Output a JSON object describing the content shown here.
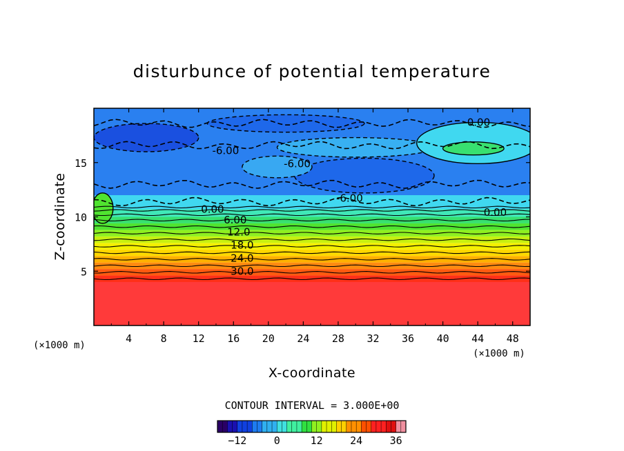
{
  "chart_data": {
    "type": "heatmap",
    "subtype": "filled-contour",
    "title": "disturbunce of potential temperature",
    "xlabel": "X-coordinate",
    "ylabel": "Z-coordinate",
    "x_unit": "(×1000 m)",
    "z_unit": "(×1000 m)",
    "xlim": [
      0,
      50
    ],
    "zlim": [
      0,
      20
    ],
    "x_ticks": [
      "4",
      "8",
      "12",
      "16",
      "20",
      "24",
      "28",
      "32",
      "36",
      "40",
      "44",
      "48"
    ],
    "z_ticks": [
      "5",
      "10",
      "15"
    ],
    "contour_interval_text": "CONTOUR INTERVAL = 3.000E+00",
    "colorbar": {
      "min": -18,
      "max": 39,
      "tick_labels": [
        "-12",
        "0",
        "12",
        "24",
        "36"
      ],
      "colors": [
        "#2a0066",
        "#1a10b0",
        "#1040e0",
        "#1e7cf0",
        "#30b0f0",
        "#40e0e0",
        "#40f0a0",
        "#30e040",
        "#90f020",
        "#e0f000",
        "#ffd000",
        "#ff9000",
        "#ff5000",
        "#ff2020",
        "#e01010",
        "#f090a0"
      ]
    },
    "layers": [
      {
        "z_bottom": 0.0,
        "z_top": 4.0,
        "value": 36,
        "color": "#ff3a3a"
      },
      {
        "z_bottom": 4.0,
        "z_top": 4.6,
        "value": 33,
        "color": "#ff3018"
      },
      {
        "z_bottom": 4.6,
        "z_top": 5.2,
        "value": 30,
        "color": "#ff5a10"
      },
      {
        "z_bottom": 5.2,
        "z_top": 5.8,
        "value": 27,
        "color": "#ff8a10"
      },
      {
        "z_bottom": 5.8,
        "z_top": 6.4,
        "value": 24,
        "color": "#ffb000"
      },
      {
        "z_bottom": 6.4,
        "z_top": 7.0,
        "value": 21,
        "color": "#ffd800"
      },
      {
        "z_bottom": 7.0,
        "z_top": 7.6,
        "value": 18,
        "color": "#f4f000"
      },
      {
        "z_bottom": 7.6,
        "z_top": 8.2,
        "value": 15,
        "color": "#c8f010"
      },
      {
        "z_bottom": 8.2,
        "z_top": 8.8,
        "value": 12,
        "color": "#8ef020"
      },
      {
        "z_bottom": 8.8,
        "z_top": 9.4,
        "value": 9,
        "color": "#50e430"
      },
      {
        "z_bottom": 9.4,
        "z_top": 10.0,
        "value": 6,
        "color": "#38e070"
      },
      {
        "z_bottom": 10.0,
        "z_top": 10.7,
        "value": 3,
        "color": "#40e8b8"
      },
      {
        "z_bottom": 10.7,
        "z_top": 12.0,
        "value": 0,
        "color": "#40d8f0"
      },
      {
        "z_bottom": 12.0,
        "z_top": 20.0,
        "value": -6,
        "color": "#2a80f0"
      }
    ],
    "contour_lines": [
      {
        "z": 4.3,
        "value": 36,
        "style": "solid"
      },
      {
        "z": 4.9,
        "value": 33,
        "style": "solid"
      },
      {
        "z": 5.5,
        "value": 30,
        "style": "solid"
      },
      {
        "z": 6.1,
        "value": 27,
        "style": "solid"
      },
      {
        "z": 6.7,
        "value": 24,
        "style": "solid"
      },
      {
        "z": 7.3,
        "value": 21,
        "style": "solid"
      },
      {
        "z": 7.9,
        "value": 18,
        "style": "solid"
      },
      {
        "z": 8.5,
        "value": 15,
        "style": "solid"
      },
      {
        "z": 9.1,
        "value": 12,
        "style": "solid"
      },
      {
        "z": 9.7,
        "value": 9,
        "style": "solid"
      },
      {
        "z": 10.2,
        "value": 6,
        "style": "solid"
      },
      {
        "z": 10.6,
        "value": 3,
        "style": "solid"
      },
      {
        "z": 10.9,
        "value": 0,
        "style": "solid"
      },
      {
        "z": 11.4,
        "value": -3,
        "style": "dashed"
      },
      {
        "z": 13.0,
        "value": -6,
        "style": "dashed"
      },
      {
        "z": 16.6,
        "value": -6,
        "style": "dashed"
      },
      {
        "z": 18.6,
        "value": -9,
        "style": "dashed"
      }
    ],
    "cells": [
      {
        "x": 6,
        "z": 17.3,
        "rx": 6,
        "rz": 1.3,
        "value": -12,
        "color": "#1a50e0"
      },
      {
        "x": 22,
        "z": 18.6,
        "rx": 9,
        "rz": 0.8,
        "value": -9,
        "color": "#1e68ea"
      },
      {
        "x": 31,
        "z": 13.8,
        "rx": 8,
        "rz": 1.6,
        "value": -9,
        "color": "#1e68ea"
      },
      {
        "x": 30,
        "z": 16.4,
        "rx": 9,
        "rz": 0.9,
        "value": -3,
        "color": "#38b0f2"
      },
      {
        "x": 44,
        "z": 16.8,
        "rx": 7,
        "rz": 1.9,
        "value": 0,
        "color": "#40d8f0"
      },
      {
        "x": 43.5,
        "z": 16.3,
        "rx": 3.5,
        "rz": 0.6,
        "value": 6,
        "color": "#38e070"
      },
      {
        "x": 21,
        "z": 14.6,
        "rx": 4,
        "rz": 1.0,
        "value": -3,
        "color": "#38a8f2"
      },
      {
        "x": 1,
        "z": 10.8,
        "rx": 1.2,
        "rz": 1.4,
        "value": 9,
        "color": "#50e430"
      }
    ],
    "contour_labels": [
      {
        "text": "30.0",
        "x": 17.0,
        "z": 5.0
      },
      {
        "text": "24.0",
        "x": 17.0,
        "z": 6.2
      },
      {
        "text": "18.0",
        "x": 17.0,
        "z": 7.4
      },
      {
        "text": "12.0",
        "x": 16.6,
        "z": 8.6
      },
      {
        "text": "6.00",
        "x": 16.2,
        "z": 9.7
      },
      {
        "text": "0.00",
        "x": 13.6,
        "z": 10.7
      },
      {
        "text": "0.00",
        "x": 46.0,
        "z": 10.4
      },
      {
        "text": "-6.00",
        "x": 29.3,
        "z": 11.7
      },
      {
        "text": "-6.00",
        "x": 23.3,
        "z": 14.9
      },
      {
        "text": "-6.00",
        "x": 15.1,
        "z": 16.1
      },
      {
        "text": "0.00",
        "x": 44.1,
        "z": 18.7
      }
    ]
  }
}
